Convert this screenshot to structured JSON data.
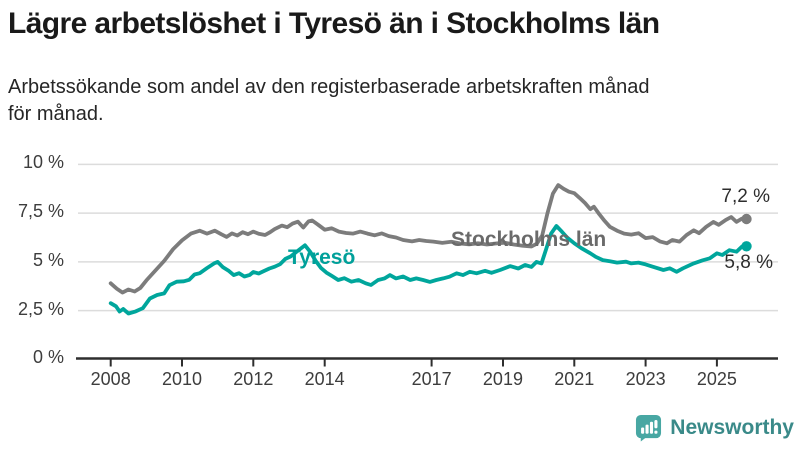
{
  "chart_data": {
    "type": "line",
    "title": "Lägre arbetslöshet i Tyresö än i Stockholms län",
    "subtitle": "Arbetssökande som andel av den registerbaserade arbetskraften månad för månad.",
    "subtitle_line1": "Arbetssökande som andel av den registerbaserade arbetskraften månad",
    "subtitle_line2": "för månad.",
    "grid": "horizontal",
    "legend": "inline-labels",
    "x_axis": {
      "tick_years": [
        2008,
        2010,
        2012,
        2014,
        2017,
        2019,
        2021,
        2023,
        2025
      ],
      "range": [
        2007.1,
        2026.7
      ]
    },
    "y_axis": {
      "unit": "%",
      "range": [
        0,
        10
      ],
      "ticks": [
        {
          "label": "10 %",
          "value": 10
        },
        {
          "label": "7,5 %",
          "value": 7.5
        },
        {
          "label": "5 %",
          "value": 5
        },
        {
          "label": "2,5 %",
          "value": 2.5
        },
        {
          "label": "0 %",
          "value": 0
        }
      ]
    },
    "series": [
      {
        "name": "Stockholms län",
        "color": "#7c7c7c",
        "label_color": "#6a6a6a",
        "end_label": "7,2 %",
        "end_value": 7.2,
        "points": [
          [
            2008.0,
            3.9
          ],
          [
            2008.17,
            3.62
          ],
          [
            2008.33,
            3.42
          ],
          [
            2008.5,
            3.58
          ],
          [
            2008.67,
            3.48
          ],
          [
            2008.83,
            3.66
          ],
          [
            2009.0,
            4.05
          ],
          [
            2009.25,
            4.55
          ],
          [
            2009.5,
            5.05
          ],
          [
            2009.75,
            5.65
          ],
          [
            2010.0,
            6.1
          ],
          [
            2010.25,
            6.45
          ],
          [
            2010.5,
            6.6
          ],
          [
            2010.7,
            6.45
          ],
          [
            2010.92,
            6.6
          ],
          [
            2011.1,
            6.42
          ],
          [
            2011.25,
            6.28
          ],
          [
            2011.4,
            6.46
          ],
          [
            2011.55,
            6.35
          ],
          [
            2011.7,
            6.52
          ],
          [
            2011.85,
            6.42
          ],
          [
            2012.0,
            6.55
          ],
          [
            2012.15,
            6.44
          ],
          [
            2012.33,
            6.38
          ],
          [
            2012.47,
            6.52
          ],
          [
            2012.6,
            6.68
          ],
          [
            2012.8,
            6.86
          ],
          [
            2012.95,
            6.78
          ],
          [
            2013.1,
            6.96
          ],
          [
            2013.25,
            7.06
          ],
          [
            2013.4,
            6.76
          ],
          [
            2013.55,
            7.08
          ],
          [
            2013.65,
            7.12
          ],
          [
            2013.82,
            6.9
          ],
          [
            2014.0,
            6.65
          ],
          [
            2014.2,
            6.72
          ],
          [
            2014.4,
            6.55
          ],
          [
            2014.6,
            6.48
          ],
          [
            2014.8,
            6.45
          ],
          [
            2015.0,
            6.55
          ],
          [
            2015.2,
            6.45
          ],
          [
            2015.4,
            6.36
          ],
          [
            2015.6,
            6.46
          ],
          [
            2015.8,
            6.32
          ],
          [
            2016.0,
            6.25
          ],
          [
            2016.2,
            6.12
          ],
          [
            2016.45,
            6.05
          ],
          [
            2016.65,
            6.12
          ],
          [
            2016.85,
            6.07
          ],
          [
            2017.05,
            6.04
          ],
          [
            2017.3,
            5.97
          ],
          [
            2017.55,
            6.03
          ],
          [
            2017.8,
            5.94
          ],
          [
            2018.05,
            5.9
          ],
          [
            2018.3,
            5.95
          ],
          [
            2018.55,
            5.89
          ],
          [
            2018.8,
            5.94
          ],
          [
            2019.05,
            5.98
          ],
          [
            2019.3,
            5.89
          ],
          [
            2019.55,
            5.83
          ],
          [
            2019.8,
            5.79
          ],
          [
            2019.95,
            5.93
          ],
          [
            2020.1,
            6.35
          ],
          [
            2020.25,
            7.5
          ],
          [
            2020.4,
            8.5
          ],
          [
            2020.55,
            8.94
          ],
          [
            2020.7,
            8.75
          ],
          [
            2020.85,
            8.6
          ],
          [
            2021.0,
            8.52
          ],
          [
            2021.15,
            8.28
          ],
          [
            2021.3,
            8.02
          ],
          [
            2021.45,
            7.7
          ],
          [
            2021.55,
            7.83
          ],
          [
            2021.7,
            7.45
          ],
          [
            2021.85,
            7.1
          ],
          [
            2022.0,
            6.8
          ],
          [
            2022.2,
            6.6
          ],
          [
            2022.4,
            6.45
          ],
          [
            2022.6,
            6.4
          ],
          [
            2022.8,
            6.47
          ],
          [
            2023.0,
            6.22
          ],
          [
            2023.2,
            6.27
          ],
          [
            2023.4,
            6.05
          ],
          [
            2023.6,
            5.95
          ],
          [
            2023.75,
            6.12
          ],
          [
            2023.95,
            6.04
          ],
          [
            2024.15,
            6.38
          ],
          [
            2024.35,
            6.62
          ],
          [
            2024.5,
            6.47
          ],
          [
            2024.7,
            6.8
          ],
          [
            2024.9,
            7.05
          ],
          [
            2025.05,
            6.9
          ],
          [
            2025.25,
            7.15
          ],
          [
            2025.4,
            7.3
          ],
          [
            2025.55,
            7.05
          ],
          [
            2025.7,
            7.22
          ],
          [
            2025.83,
            7.2
          ]
        ]
      },
      {
        "name": "Tyresö",
        "color": "#00a69c",
        "label_color": "#00a09a",
        "end_label": "5,8 %",
        "end_value": 5.8,
        "points": [
          [
            2008.0,
            2.88
          ],
          [
            2008.15,
            2.72
          ],
          [
            2008.25,
            2.45
          ],
          [
            2008.35,
            2.58
          ],
          [
            2008.5,
            2.35
          ],
          [
            2008.7,
            2.46
          ],
          [
            2008.9,
            2.62
          ],
          [
            2009.1,
            3.12
          ],
          [
            2009.3,
            3.3
          ],
          [
            2009.5,
            3.38
          ],
          [
            2009.65,
            3.8
          ],
          [
            2009.85,
            3.98
          ],
          [
            2010.05,
            4.0
          ],
          [
            2010.2,
            4.08
          ],
          [
            2010.35,
            4.35
          ],
          [
            2010.5,
            4.42
          ],
          [
            2010.7,
            4.68
          ],
          [
            2010.9,
            4.92
          ],
          [
            2011.0,
            5.0
          ],
          [
            2011.15,
            4.72
          ],
          [
            2011.3,
            4.55
          ],
          [
            2011.45,
            4.32
          ],
          [
            2011.6,
            4.42
          ],
          [
            2011.75,
            4.25
          ],
          [
            2011.9,
            4.33
          ],
          [
            2012.0,
            4.48
          ],
          [
            2012.15,
            4.4
          ],
          [
            2012.3,
            4.53
          ],
          [
            2012.45,
            4.66
          ],
          [
            2012.6,
            4.75
          ],
          [
            2012.75,
            4.88
          ],
          [
            2012.9,
            5.15
          ],
          [
            2013.05,
            5.28
          ],
          [
            2013.2,
            5.5
          ],
          [
            2013.45,
            5.85
          ],
          [
            2013.6,
            5.5
          ],
          [
            2013.75,
            5.05
          ],
          [
            2013.9,
            4.68
          ],
          [
            2014.05,
            4.45
          ],
          [
            2014.2,
            4.28
          ],
          [
            2014.38,
            4.07
          ],
          [
            2014.55,
            4.16
          ],
          [
            2014.75,
            3.98
          ],
          [
            2014.95,
            4.07
          ],
          [
            2015.15,
            3.9
          ],
          [
            2015.3,
            3.81
          ],
          [
            2015.5,
            4.07
          ],
          [
            2015.68,
            4.15
          ],
          [
            2015.83,
            4.32
          ],
          [
            2016.0,
            4.15
          ],
          [
            2016.2,
            4.25
          ],
          [
            2016.4,
            4.07
          ],
          [
            2016.57,
            4.15
          ],
          [
            2016.76,
            4.07
          ],
          [
            2016.95,
            3.97
          ],
          [
            2017.13,
            4.07
          ],
          [
            2017.32,
            4.15
          ],
          [
            2017.5,
            4.24
          ],
          [
            2017.7,
            4.41
          ],
          [
            2017.88,
            4.32
          ],
          [
            2018.07,
            4.49
          ],
          [
            2018.26,
            4.41
          ],
          [
            2018.5,
            4.54
          ],
          [
            2018.68,
            4.44
          ],
          [
            2018.92,
            4.58
          ],
          [
            2019.2,
            4.78
          ],
          [
            2019.43,
            4.66
          ],
          [
            2019.62,
            4.84
          ],
          [
            2019.8,
            4.74
          ],
          [
            2019.94,
            5.0
          ],
          [
            2020.08,
            4.92
          ],
          [
            2020.2,
            5.6
          ],
          [
            2020.35,
            6.45
          ],
          [
            2020.5,
            6.84
          ],
          [
            2020.65,
            6.55
          ],
          [
            2020.8,
            6.25
          ],
          [
            2021.0,
            5.95
          ],
          [
            2021.2,
            5.7
          ],
          [
            2021.45,
            5.44
          ],
          [
            2021.6,
            5.26
          ],
          [
            2021.8,
            5.09
          ],
          [
            2022.0,
            5.03
          ],
          [
            2022.2,
            4.96
          ],
          [
            2022.45,
            5.01
          ],
          [
            2022.6,
            4.92
          ],
          [
            2022.8,
            4.96
          ],
          [
            2023.0,
            4.87
          ],
          [
            2023.2,
            4.75
          ],
          [
            2023.5,
            4.58
          ],
          [
            2023.68,
            4.67
          ],
          [
            2023.87,
            4.49
          ],
          [
            2024.05,
            4.67
          ],
          [
            2024.35,
            4.92
          ],
          [
            2024.6,
            5.08
          ],
          [
            2024.8,
            5.18
          ],
          [
            2025.0,
            5.44
          ],
          [
            2025.15,
            5.35
          ],
          [
            2025.35,
            5.6
          ],
          [
            2025.55,
            5.52
          ],
          [
            2025.7,
            5.78
          ],
          [
            2025.83,
            5.8
          ]
        ]
      }
    ]
  },
  "logo": {
    "text": "Newsworthy",
    "icon": "speech-bubble-bar-chart-icon",
    "icon_color": "#48a7a3",
    "text_color": "#3a8a89"
  },
  "colors": {
    "gridline": "#dcdcdc",
    "axis": "#2e2e2e",
    "tick_text": "#3d3d3d",
    "title_text": "#1a1a1a"
  }
}
